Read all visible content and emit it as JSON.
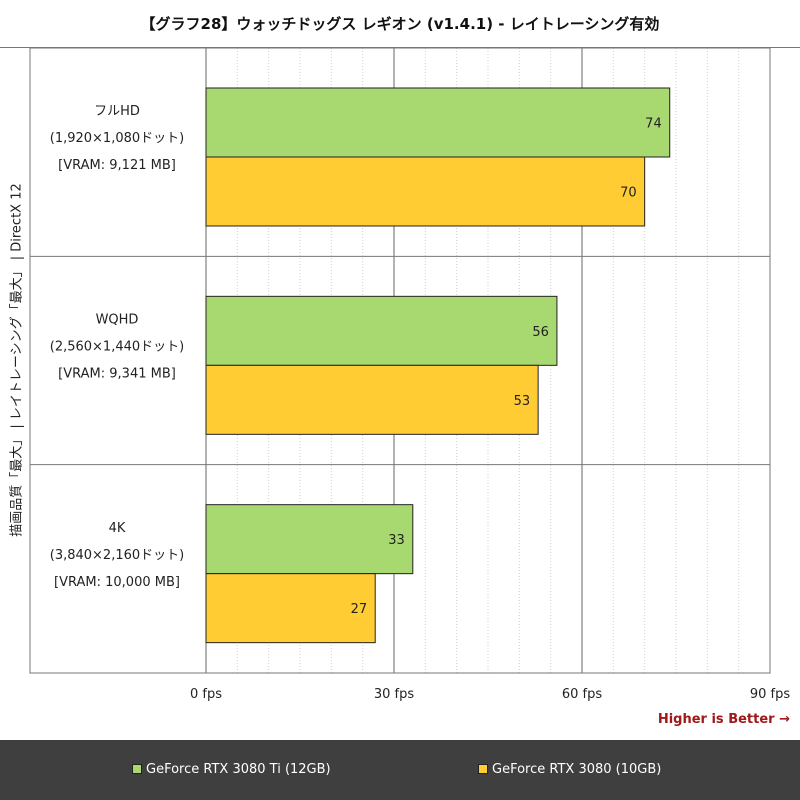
{
  "chart_data": {
    "type": "bar",
    "orientation": "horizontal",
    "title": "【グラフ28】ウォッチドッグス レギオン (v1.4.1) - レイトレーシング有効",
    "ylabel": "描画品質「最大」 | レイトレーシング「最大」 | DirectX 12",
    "categories": [
      {
        "lines": [
          "フルHD",
          "(1,920×1,080ドット)",
          "[VRAM: 9,121 MB]"
        ]
      },
      {
        "lines": [
          "WQHD",
          "(2,560×1,440ドット)",
          "[VRAM: 9,341 MB]"
        ]
      },
      {
        "lines": [
          "4K",
          "(3,840×2,160ドット)",
          "[VRAM: 10,000 MB]"
        ]
      }
    ],
    "series": [
      {
        "name": "GeForce RTX 3080 Ti (12GB)",
        "color": "#a8d870",
        "values": [
          74,
          56,
          33
        ]
      },
      {
        "name": "GeForce RTX 3080 (10GB)",
        "color": "#ffcc33",
        "values": [
          70,
          53,
          27
        ]
      }
    ],
    "xlim": [
      0,
      90
    ],
    "xticks": [
      {
        "value": 0,
        "label": "0 fps"
      },
      {
        "value": 30,
        "label": "30 fps"
      },
      {
        "value": 60,
        "label": "60 fps"
      },
      {
        "value": 90,
        "label": "90 fps"
      }
    ],
    "grid": true,
    "annotation": "Higher is Better →",
    "legend_position": "bottom"
  }
}
